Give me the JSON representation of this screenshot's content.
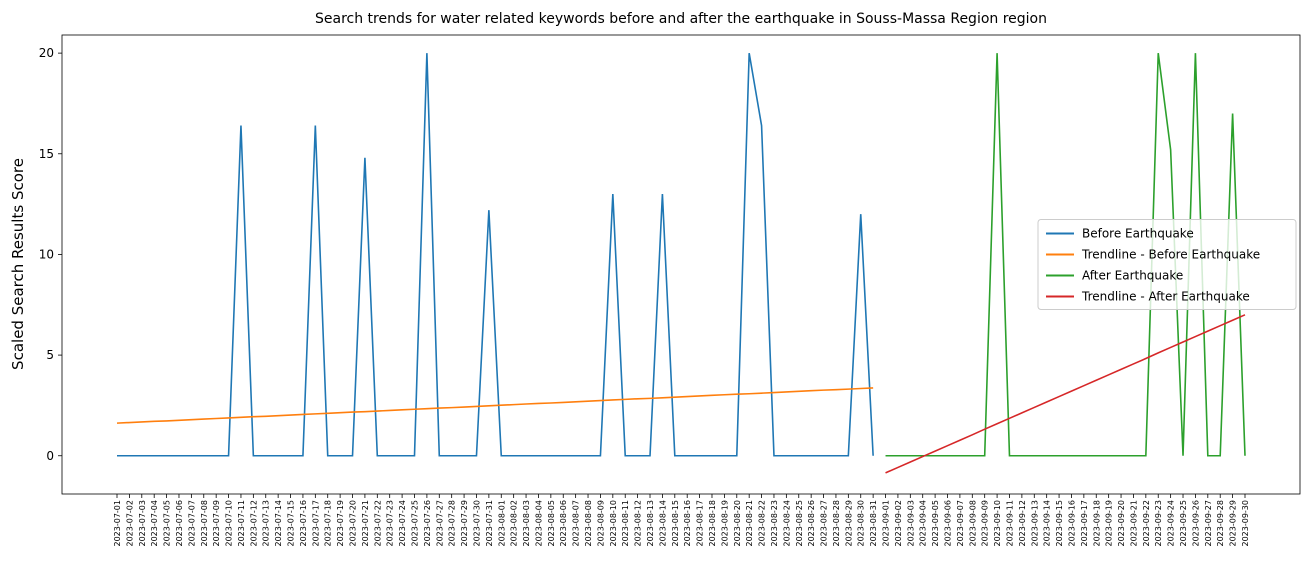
{
  "chart_data": {
    "type": "line",
    "title": "Search trends for water related keywords before and after the earthquake in Souss-Massa Region region",
    "ylabel": "Scaled Search Results Score",
    "categories": [
      "2023-07-01",
      "2023-07-02",
      "2023-07-03",
      "2023-07-04",
      "2023-07-05",
      "2023-07-06",
      "2023-07-07",
      "2023-07-08",
      "2023-07-09",
      "2023-07-10",
      "2023-07-11",
      "2023-07-12",
      "2023-07-13",
      "2023-07-14",
      "2023-07-15",
      "2023-07-16",
      "2023-07-17",
      "2023-07-18",
      "2023-07-19",
      "2023-07-20",
      "2023-07-21",
      "2023-07-22",
      "2023-07-23",
      "2023-07-24",
      "2023-07-25",
      "2023-07-26",
      "2023-07-27",
      "2023-07-28",
      "2023-07-29",
      "2023-07-30",
      "2023-07-31",
      "2023-08-01",
      "2023-08-02",
      "2023-08-03",
      "2023-08-04",
      "2023-08-05",
      "2023-08-06",
      "2023-08-07",
      "2023-08-08",
      "2023-08-09",
      "2023-08-10",
      "2023-08-11",
      "2023-08-12",
      "2023-08-13",
      "2023-08-14",
      "2023-08-15",
      "2023-08-16",
      "2023-08-17",
      "2023-08-18",
      "2023-08-19",
      "2023-08-20",
      "2023-08-21",
      "2023-08-22",
      "2023-08-23",
      "2023-08-24",
      "2023-08-25",
      "2023-08-26",
      "2023-08-27",
      "2023-08-28",
      "2023-08-29",
      "2023-08-30",
      "2023-08-31",
      "2023-09-01",
      "2023-09-02",
      "2023-09-03",
      "2023-09-04",
      "2023-09-05",
      "2023-09-06",
      "2023-09-07",
      "2023-09-08",
      "2023-09-09",
      "2023-09-10",
      "2023-09-11",
      "2023-09-12",
      "2023-09-13",
      "2023-09-14",
      "2023-09-15",
      "2023-09-16",
      "2023-09-17",
      "2023-09-18",
      "2023-09-19",
      "2023-09-20",
      "2023-09-21",
      "2023-09-22",
      "2023-09-23",
      "2023-09-24",
      "2023-09-25",
      "2023-09-26",
      "2023-09-27",
      "2023-09-28",
      "2023-09-29",
      "2023-09-30"
    ],
    "series": [
      {
        "name": "Before Earthquake",
        "color": "#1f77b4",
        "values": [
          0,
          0,
          0,
          0,
          0,
          0,
          0,
          0,
          0,
          0,
          16.4,
          0,
          0,
          0,
          0,
          0,
          16.4,
          0,
          0,
          0,
          14.8,
          0,
          0,
          0,
          0,
          20,
          0,
          0,
          0,
          0,
          12.2,
          0,
          0,
          0,
          0,
          0,
          0,
          0,
          0,
          0,
          13,
          0,
          0,
          0,
          13,
          0,
          0,
          0,
          0,
          0,
          0,
          20,
          16.4,
          0,
          0,
          0,
          0,
          0,
          0,
          0,
          12,
          0,
          null,
          null,
          null,
          null,
          null,
          null,
          null,
          null,
          null,
          null,
          null,
          null,
          null,
          null,
          null,
          null,
          null,
          null,
          null,
          null,
          null,
          null,
          null,
          null,
          null,
          null,
          null,
          null,
          null,
          null
        ]
      },
      {
        "name": "Trendline - Before Earthquake",
        "color": "#ff7f0e",
        "values": [
          1.62,
          1.65,
          1.68,
          1.71,
          1.73,
          1.76,
          1.79,
          1.82,
          1.85,
          1.88,
          1.91,
          1.94,
          1.96,
          1.99,
          2.02,
          2.05,
          2.08,
          2.11,
          2.14,
          2.17,
          2.19,
          2.22,
          2.25,
          2.28,
          2.31,
          2.34,
          2.37,
          2.39,
          2.42,
          2.45,
          2.48,
          2.51,
          2.54,
          2.57,
          2.6,
          2.62,
          2.65,
          2.68,
          2.71,
          2.74,
          2.77,
          2.8,
          2.83,
          2.85,
          2.88,
          2.91,
          2.94,
          2.97,
          3.0,
          3.03,
          3.06,
          3.08,
          3.11,
          3.14,
          3.17,
          3.2,
          3.23,
          3.26,
          3.28,
          3.31,
          3.34,
          3.37,
          null,
          null,
          null,
          null,
          null,
          null,
          null,
          null,
          null,
          null,
          null,
          null,
          null,
          null,
          null,
          null,
          null,
          null,
          null,
          null,
          null,
          null,
          null,
          null,
          null,
          null,
          null,
          null,
          null,
          null
        ]
      },
      {
        "name": "After Earthquake",
        "color": "#2ca02c",
        "values": [
          null,
          null,
          null,
          null,
          null,
          null,
          null,
          null,
          null,
          null,
          null,
          null,
          null,
          null,
          null,
          null,
          null,
          null,
          null,
          null,
          null,
          null,
          null,
          null,
          null,
          null,
          null,
          null,
          null,
          null,
          null,
          null,
          null,
          null,
          null,
          null,
          null,
          null,
          null,
          null,
          null,
          null,
          null,
          null,
          null,
          null,
          null,
          null,
          null,
          null,
          null,
          null,
          null,
          null,
          null,
          null,
          null,
          null,
          null,
          null,
          null,
          null,
          0,
          0,
          0,
          0,
          0,
          0,
          0,
          0,
          0,
          20,
          0,
          0,
          0,
          0,
          0,
          0,
          0,
          0,
          0,
          0,
          0,
          0,
          20,
          15.2,
          0,
          20,
          0,
          0,
          17,
          0
        ]
      },
      {
        "name": "Trendline - After Earthquake",
        "color": "#d62728",
        "values": [
          null,
          null,
          null,
          null,
          null,
          null,
          null,
          null,
          null,
          null,
          null,
          null,
          null,
          null,
          null,
          null,
          null,
          null,
          null,
          null,
          null,
          null,
          null,
          null,
          null,
          null,
          null,
          null,
          null,
          null,
          null,
          null,
          null,
          null,
          null,
          null,
          null,
          null,
          null,
          null,
          null,
          null,
          null,
          null,
          null,
          null,
          null,
          null,
          null,
          null,
          null,
          null,
          null,
          null,
          null,
          null,
          null,
          null,
          null,
          null,
          null,
          null,
          -0.85,
          -0.58,
          -0.31,
          -0.04,
          0.23,
          0.5,
          0.77,
          1.04,
          1.32,
          1.59,
          1.86,
          2.13,
          2.4,
          2.67,
          2.94,
          3.21,
          3.48,
          3.75,
          4.02,
          4.29,
          4.56,
          4.83,
          5.11,
          5.38,
          5.65,
          5.92,
          6.19,
          6.46,
          6.73,
          7.0
        ]
      }
    ],
    "ylim": [
      -1.9,
      20.9
    ],
    "yticks": [
      0,
      5,
      10,
      15,
      20
    ],
    "legend": "center right"
  }
}
